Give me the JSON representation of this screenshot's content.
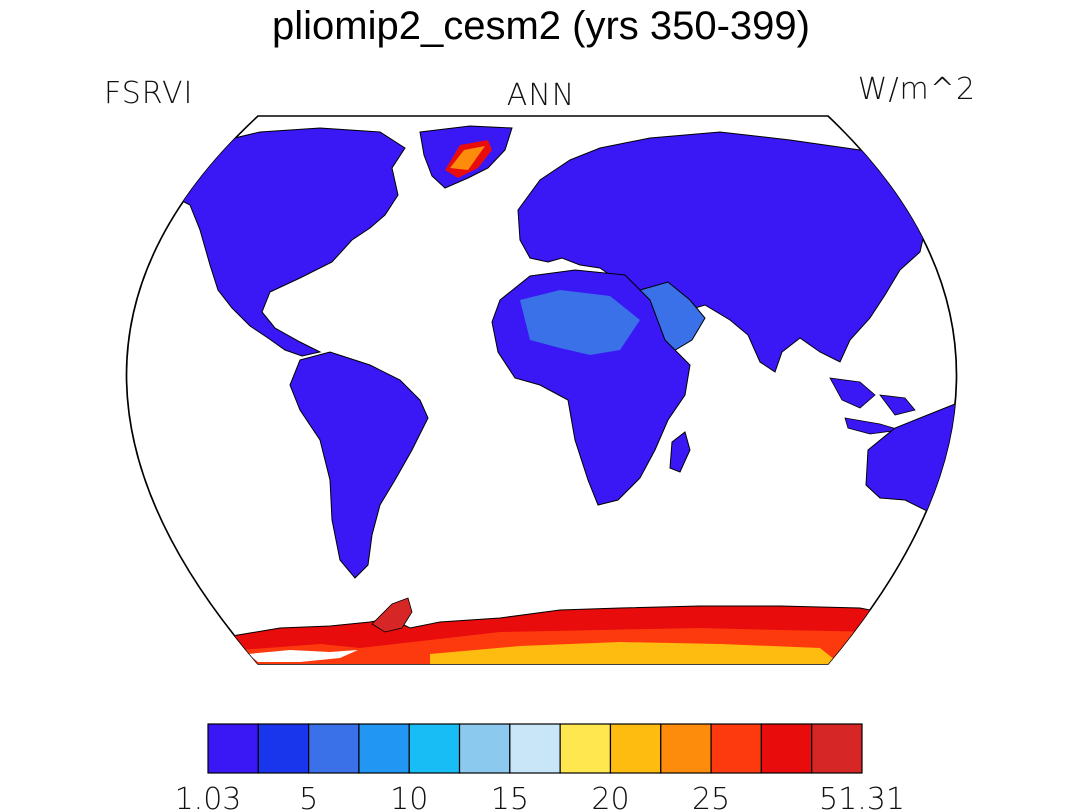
{
  "title": "pliomip2_cesm2 (yrs 350-399)",
  "variable": "FSRVI",
  "season": "ANN",
  "units": "W/m^2",
  "projection": "Robinson",
  "colorbar": {
    "colors": [
      "#3a17f5",
      "#1a36ec",
      "#3a70e8",
      "#2196f3",
      "#18bdf6",
      "#8bc9ee",
      "#c9e6f8",
      "#ffe74f",
      "#ffbc10",
      "#fd8b0c",
      "#fd3a0e",
      "#e80c0c",
      "#d72626"
    ],
    "tick_labels": [
      "1.03",
      "5",
      "10",
      "15",
      "20",
      "25",
      "51.31"
    ],
    "tick_positions": [
      0,
      1,
      2,
      3,
      4,
      5,
      6
    ]
  },
  "map": {
    "ocean_color": "#ffffff",
    "land_default_color": "#3a17f5",
    "coastline_color": "#000000"
  }
}
